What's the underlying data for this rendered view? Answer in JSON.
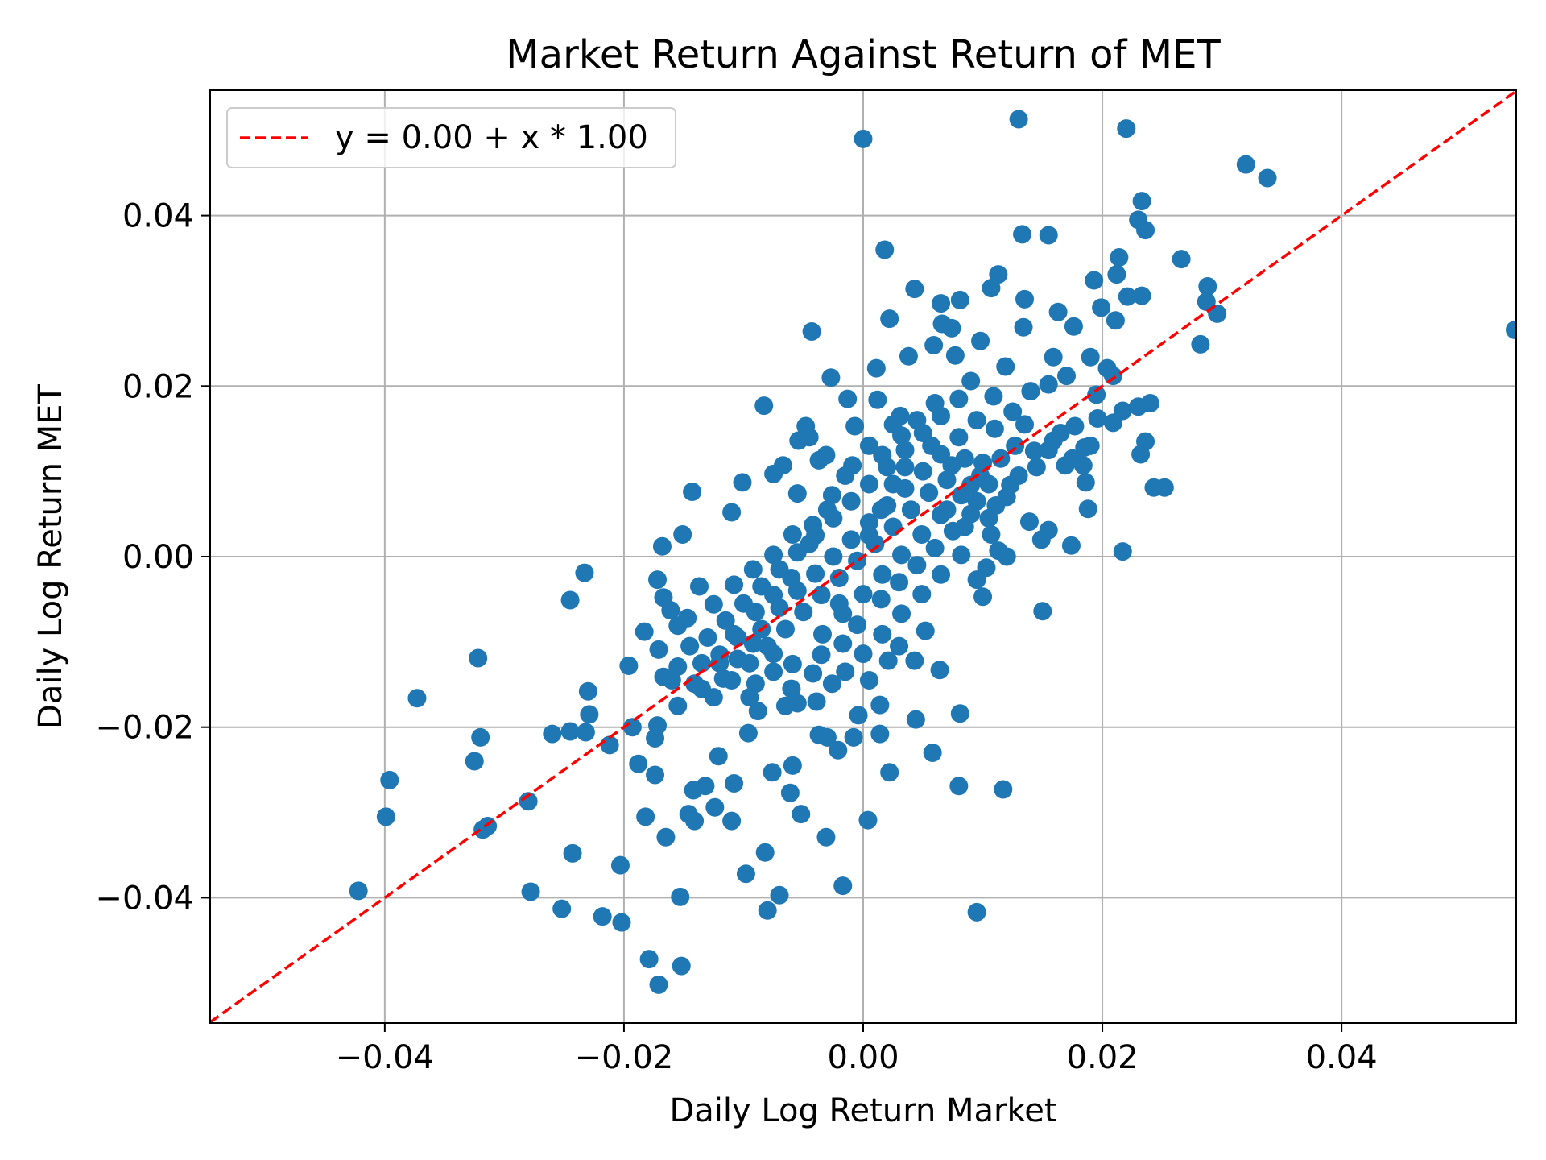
{
  "chart_data": {
    "type": "scatter",
    "title": "Market Return Against Return of MET",
    "xlabel": "Daily Log Return Market",
    "ylabel": "Daily Log Return MET",
    "xlim": [
      -0.0546,
      0.0546
    ],
    "ylim": [
      -0.0547,
      0.0547
    ],
    "xticks": [
      -0.04,
      -0.02,
      0.0,
      0.02,
      0.04
    ],
    "xtick_labels": [
      "−0.04",
      "−0.02",
      "0.00",
      "0.02",
      "0.04"
    ],
    "yticks": [
      -0.04,
      -0.02,
      0.0,
      0.02,
      0.04
    ],
    "ytick_labels": [
      "−0.04",
      "−0.02",
      "0.00",
      "0.02",
      "0.04"
    ],
    "grid": true,
    "legend": {
      "placement": "top-left",
      "entries": [
        "y = 0.00 + x * 1.00"
      ]
    },
    "fit_line": {
      "intercept": 0.0,
      "slope": 1.0,
      "color": "#ff0000",
      "style": "dashed"
    },
    "point_color": "#1f77b4",
    "points": [
      [
        0.013,
        0.0513
      ],
      [
        0.022,
        0.0502
      ],
      [
        0.0,
        0.049
      ],
      [
        0.032,
        0.046
      ],
      [
        0.0338,
        0.0444
      ],
      [
        0.0233,
        0.0417
      ],
      [
        0.0545,
        0.0266
      ],
      [
        0.0018,
        0.036
      ],
      [
        0.0133,
        0.0378
      ],
      [
        0.0155,
        0.0377
      ],
      [
        0.0236,
        0.0383
      ],
      [
        0.023,
        0.0395
      ],
      [
        0.0266,
        0.0349
      ],
      [
        0.0214,
        0.0351
      ],
      [
        0.0212,
        0.0331
      ],
      [
        0.0113,
        0.0331
      ],
      [
        0.0107,
        0.0315
      ],
      [
        0.0288,
        0.0317
      ],
      [
        0.0287,
        0.0299
      ],
      [
        0.0296,
        0.0285
      ],
      [
        0.0282,
        0.0249
      ],
      [
        0.0233,
        0.0306
      ],
      [
        0.0221,
        0.0305
      ],
      [
        0.0193,
        0.0324
      ],
      [
        0.0199,
        0.0292
      ],
      [
        0.0211,
        0.0277
      ],
      [
        0.0176,
        0.027
      ],
      [
        0.0163,
        0.0287
      ],
      [
        0.0135,
        0.0302
      ],
      [
        0.0081,
        0.0301
      ],
      [
        0.0043,
        0.0314
      ],
      [
        0.0065,
        0.0297
      ],
      [
        0.0022,
        0.0279
      ],
      [
        -0.0043,
        0.0264
      ],
      [
        0.0066,
        0.0273
      ],
      [
        0.0074,
        0.0268
      ],
      [
        0.0098,
        0.0253
      ],
      [
        0.0059,
        0.0248
      ],
      [
        -0.0027,
        0.021
      ],
      [
        0.0011,
        0.0221
      ],
      [
        0.0038,
        0.0235
      ],
      [
        0.0077,
        0.0236
      ],
      [
        0.0134,
        0.0269
      ],
      [
        0.0159,
        0.0234
      ],
      [
        0.019,
        0.0234
      ],
      [
        0.0204,
        0.0221
      ],
      [
        0.0209,
        0.0212
      ],
      [
        0.0195,
        0.019
      ],
      [
        0.0217,
        0.0171
      ],
      [
        0.024,
        0.018
      ],
      [
        0.023,
        0.0176
      ],
      [
        0.0196,
        0.0162
      ],
      [
        0.0209,
        0.0157
      ],
      [
        0.0236,
        0.0135
      ],
      [
        0.0232,
        0.012
      ],
      [
        0.0243,
        0.0081
      ],
      [
        0.0252,
        0.0081
      ],
      [
        0.0186,
        0.0087
      ],
      [
        0.0188,
        0.0056
      ],
      [
        0.0217,
        0.0006
      ],
      [
        0.0174,
        0.0013
      ],
      [
        0.015,
        -0.0064
      ],
      [
        0.0155,
        0.0031
      ],
      [
        0.0149,
        0.002
      ],
      [
        0.0139,
        0.0041
      ],
      [
        0.012,
        0.0
      ],
      [
        0.0113,
        0.0007
      ],
      [
        0.0103,
        -0.0013
      ],
      [
        0.01,
        -0.0047
      ],
      [
        0.0095,
        -0.0027
      ],
      [
        -0.0083,
        0.0177
      ],
      [
        -0.0143,
        0.0076
      ],
      [
        -0.0101,
        0.0087
      ],
      [
        -0.011,
        0.0052
      ],
      [
        -0.0151,
        0.0026
      ],
      [
        -0.0168,
        0.0012
      ],
      [
        -0.0233,
        -0.0019
      ],
      [
        -0.0245,
        -0.0051
      ],
      [
        -0.0322,
        -0.0119
      ],
      [
        -0.0373,
        -0.0166
      ],
      [
        -0.032,
        -0.0212
      ],
      [
        -0.0325,
        -0.024
      ],
      [
        -0.0396,
        -0.0262
      ],
      [
        -0.0399,
        -0.0305
      ],
      [
        -0.0422,
        -0.0392
      ],
      [
        -0.0314,
        -0.0316
      ],
      [
        -0.0318,
        -0.032
      ],
      [
        -0.028,
        -0.0287
      ],
      [
        -0.0278,
        -0.0393
      ],
      [
        -0.0243,
        -0.0348
      ],
      [
        -0.0252,
        -0.0413
      ],
      [
        -0.026,
        -0.0208
      ],
      [
        -0.0245,
        -0.0205
      ],
      [
        -0.023,
        -0.0158
      ],
      [
        -0.0229,
        -0.0185
      ],
      [
        -0.0232,
        -0.0206
      ],
      [
        -0.0212,
        -0.0221
      ],
      [
        -0.0203,
        -0.0362
      ],
      [
        -0.0218,
        -0.0422
      ],
      [
        -0.0202,
        -0.0429
      ],
      [
        -0.0179,
        -0.0472
      ],
      [
        -0.0171,
        -0.0502
      ],
      [
        -0.0152,
        -0.048
      ],
      [
        -0.0153,
        -0.0399
      ],
      [
        -0.0165,
        -0.0329
      ],
      [
        -0.0182,
        -0.0305
      ],
      [
        -0.0174,
        -0.0256
      ],
      [
        -0.0188,
        -0.0243
      ],
      [
        -0.0196,
        -0.0128
      ],
      [
        -0.0183,
        -0.0088
      ],
      [
        -0.0193,
        -0.02
      ],
      [
        -0.0174,
        -0.0213
      ],
      [
        -0.0172,
        -0.0198
      ],
      [
        -0.0142,
        -0.0274
      ],
      [
        -0.0132,
        -0.0269
      ],
      [
        -0.0146,
        -0.0302
      ],
      [
        -0.0141,
        -0.031
      ],
      [
        -0.0124,
        -0.0294
      ],
      [
        -0.0121,
        -0.0234
      ],
      [
        -0.011,
        -0.031
      ],
      [
        -0.0108,
        -0.0266
      ],
      [
        -0.0098,
        -0.0372
      ],
      [
        -0.0082,
        -0.0347
      ],
      [
        -0.0076,
        -0.0253
      ],
      [
        -0.008,
        -0.0415
      ],
      [
        -0.007,
        -0.0397
      ],
      [
        -0.0061,
        -0.0277
      ],
      [
        -0.0059,
        -0.0245
      ],
      [
        -0.0052,
        -0.0302
      ],
      [
        -0.0031,
        -0.0329
      ],
      [
        -0.0017,
        -0.0386
      ],
      [
        0.0004,
        -0.0309
      ],
      [
        0.0022,
        -0.0253
      ],
      [
        0.0014,
        -0.0174
      ],
      [
        0.0014,
        -0.0208
      ],
      [
        -0.0004,
        -0.0186
      ],
      [
        -0.0021,
        -0.0227
      ],
      [
        -0.0008,
        -0.0212
      ],
      [
        0.0044,
        -0.0191
      ],
      [
        0.0058,
        -0.023
      ],
      [
        0.0081,
        -0.0184
      ],
      [
        0.008,
        -0.0269
      ],
      [
        0.0117,
        -0.0273
      ],
      [
        0.0095,
        -0.0417
      ],
      [
        0.0064,
        -0.0133
      ],
      [
        0.0043,
        -0.0122
      ],
      [
        0.0021,
        -0.0122
      ],
      [
        0.0052,
        -0.0087
      ],
      [
        -0.0096,
        -0.0207
      ],
      [
        -0.0088,
        -0.0181
      ],
      [
        -0.0055,
        -0.0172
      ],
      [
        -0.0039,
        -0.017
      ],
      [
        -0.0037,
        -0.0209
      ],
      [
        -0.003,
        -0.0212
      ],
      [
        -0.009,
        -0.0149
      ],
      [
        -0.0117,
        -0.0143
      ],
      [
        -0.0141,
        -0.0149
      ],
      [
        -0.0155,
        -0.0129
      ],
      [
        -0.0167,
        -0.0141
      ],
      [
        -0.0171,
        -0.0109
      ],
      [
        -0.0147,
        -0.0072
      ],
      [
        -0.0137,
        -0.0035
      ],
      [
        -0.0161,
        -0.0063
      ],
      [
        -0.0172,
        -0.0027
      ],
      [
        -0.0167,
        -0.0048
      ],
      [
        -0.0155,
        -0.0081
      ],
      [
        -0.0048,
        0.0153
      ],
      [
        -0.0054,
        0.0136
      ],
      [
        -0.0067,
        0.0107
      ],
      [
        -0.0075,
        0.0097
      ],
      [
        -0.0037,
        0.0113
      ],
      [
        -0.0031,
        0.0119
      ],
      [
        -0.0055,
        0.0074
      ],
      [
        -0.0045,
        0.014
      ],
      [
        -0.0013,
        0.0185
      ],
      [
        -0.0007,
        0.0153
      ],
      [
        0.0012,
        0.0184
      ],
      [
        0.0031,
        0.0165
      ],
      [
        0.0109,
        0.0188
      ],
      [
        0.009,
        0.0206
      ],
      [
        0.0119,
        0.0223
      ],
      [
        0.014,
        0.0194
      ],
      [
        0.0155,
        0.0202
      ],
      [
        0.017,
        0.0212
      ],
      [
        0.0177,
        0.0153
      ],
      [
        0.019,
        0.013
      ],
      [
        0.0184,
        0.0107
      ],
      [
        0.0169,
        0.0107
      ],
      [
        0.0159,
        0.0136
      ],
      [
        0.0143,
        0.0124
      ],
      [
        0.0127,
        0.013
      ],
      [
        0.0123,
        0.0084
      ],
      [
        0.0111,
        0.006
      ],
      [
        0.0107,
        0.0026
      ],
      [
        0.009,
        0.0084
      ],
      [
        0.0074,
        0.0107
      ],
      [
        0.0057,
        0.013
      ],
      [
        0.0032,
        0.0142
      ],
      [
        0.0016,
        0.0119
      ],
      [
        -0.0009,
        0.0107
      ],
      [
        -0.0026,
        0.0072
      ],
      [
        -0.0042,
        0.0037
      ],
      [
        -0.0059,
        0.0026
      ],
      [
        -0.0075,
        0.0002
      ],
      [
        -0.0092,
        -0.0015
      ],
      [
        -0.0108,
        -0.0033
      ],
      [
        -0.0125,
        -0.0056
      ],
      [
        -0.0108,
        -0.0091
      ],
      [
        -0.0092,
        -0.0102
      ],
      [
        -0.0075,
        -0.0114
      ],
      [
        -0.0059,
        -0.0126
      ],
      [
        -0.0042,
        -0.0137
      ],
      [
        -0.0026,
        -0.0149
      ],
      [
        -0.0034,
        -0.0091
      ],
      [
        -0.0017,
        -0.0067
      ],
      [
        0.0,
        -0.0044
      ],
      [
        0.0016,
        -0.0021
      ],
      [
        0.0032,
        0.0002
      ],
      [
        0.0049,
        0.0026
      ],
      [
        0.0065,
        0.0049
      ],
      [
        0.0082,
        0.0072
      ],
      [
        0.0098,
        0.0095
      ],
      [
        0.0065,
        -0.0021
      ],
      [
        0.0082,
        0.0002
      ],
      [
        0.0049,
        -0.0044
      ],
      [
        0.0032,
        -0.0067
      ],
      [
        0.0016,
        -0.0091
      ],
      [
        0.0,
        -0.0114
      ],
      [
        -0.0017,
        -0.0102
      ],
      [
        -0.012,
        -0.0115
      ],
      [
        -0.0105,
        -0.012
      ],
      [
        -0.0085,
        -0.0085
      ],
      [
        -0.007,
        -0.006
      ],
      [
        -0.0055,
        -0.004
      ],
      [
        -0.004,
        -0.002
      ],
      [
        -0.0025,
        0.0
      ],
      [
        -0.001,
        0.002
      ],
      [
        0.0005,
        0.004
      ],
      [
        0.002,
        0.006
      ],
      [
        0.0035,
        0.008
      ],
      [
        0.005,
        0.01
      ],
      [
        0.0065,
        0.012
      ],
      [
        0.008,
        0.014
      ],
      [
        0.0095,
        0.016
      ],
      [
        0.011,
        0.015
      ],
      [
        0.0125,
        0.017
      ],
      [
        0.0135,
        0.0155
      ],
      [
        0.0115,
        0.0115
      ],
      [
        0.01,
        0.011
      ],
      [
        0.0085,
        0.0115
      ],
      [
        0.007,
        0.009
      ],
      [
        0.0055,
        0.0075
      ],
      [
        0.004,
        0.0055
      ],
      [
        0.0025,
        0.0035
      ],
      [
        0.001,
        0.0015
      ],
      [
        -0.0005,
        -0.0005
      ],
      [
        -0.002,
        -0.0025
      ],
      [
        -0.0035,
        -0.0045
      ],
      [
        -0.005,
        -0.0065
      ],
      [
        -0.0065,
        -0.0085
      ],
      [
        -0.008,
        -0.0105
      ],
      [
        -0.0095,
        -0.0125
      ],
      [
        -0.011,
        -0.0145
      ],
      [
        -0.0125,
        -0.0165
      ],
      [
        -0.013,
        -0.0095
      ],
      [
        -0.0115,
        -0.0075
      ],
      [
        -0.01,
        -0.0055
      ],
      [
        -0.0085,
        -0.0035
      ],
      [
        -0.007,
        -0.0015
      ],
      [
        -0.0055,
        0.0005
      ],
      [
        -0.004,
        0.0025
      ],
      [
        -0.0025,
        0.0045
      ],
      [
        -0.001,
        0.0065
      ],
      [
        0.0005,
        0.0085
      ],
      [
        0.002,
        0.0105
      ],
      [
        0.0035,
        0.0125
      ],
      [
        0.005,
        0.0145
      ],
      [
        0.0065,
        0.0165
      ],
      [
        0.008,
        0.0185
      ],
      [
        0.006,
        0.018
      ],
      [
        0.0045,
        0.016
      ],
      [
        0.0025,
        0.0155
      ],
      [
        0.0005,
        0.013
      ],
      [
        -0.0015,
        0.0095
      ],
      [
        -0.003,
        0.0055
      ],
      [
        -0.0045,
        0.0015
      ],
      [
        -0.006,
        -0.0025
      ],
      [
        -0.0075,
        -0.0045
      ],
      [
        -0.009,
        -0.0065
      ],
      [
        -0.0105,
        -0.0095
      ],
      [
        -0.012,
        -0.0125
      ],
      [
        -0.0135,
        -0.0125
      ],
      [
        0.0015,
        -0.005
      ],
      [
        0.003,
        -0.003
      ],
      [
        0.0045,
        -0.001
      ],
      [
        0.006,
        0.001
      ],
      [
        0.0075,
        0.003
      ],
      [
        0.009,
        0.005
      ],
      [
        0.0105,
        0.0045
      ],
      [
        0.012,
        0.007
      ],
      [
        0.013,
        0.0095
      ],
      [
        0.0145,
        0.0105
      ],
      [
        0.0155,
        0.0125
      ],
      [
        0.0165,
        0.0145
      ],
      [
        0.0175,
        0.0115
      ],
      [
        0.0185,
        0.0128
      ],
      [
        -0.0005,
        -0.008
      ],
      [
        -0.002,
        -0.0055
      ],
      [
        0.0005,
        0.0025
      ],
      [
        0.0015,
        0.0055
      ],
      [
        0.0025,
        0.0085
      ],
      [
        0.0035,
        0.0105
      ],
      [
        -0.0035,
        -0.0115
      ],
      [
        -0.0015,
        -0.0135
      ],
      [
        0.0005,
        -0.0145
      ],
      [
        0.003,
        -0.0105
      ],
      [
        -0.006,
        -0.0155
      ],
      [
        -0.0075,
        -0.0135
      ],
      [
        -0.0095,
        -0.0165
      ],
      [
        -0.0065,
        -0.0175
      ],
      [
        -0.0145,
        -0.0105
      ],
      [
        -0.0135,
        -0.0155
      ],
      [
        -0.0155,
        -0.0175
      ],
      [
        -0.016,
        -0.0145
      ],
      [
        0.007,
        0.0055
      ],
      [
        0.0085,
        0.0035
      ],
      [
        0.0095,
        0.0065
      ],
      [
        0.0105,
        0.0085
      ]
    ]
  }
}
